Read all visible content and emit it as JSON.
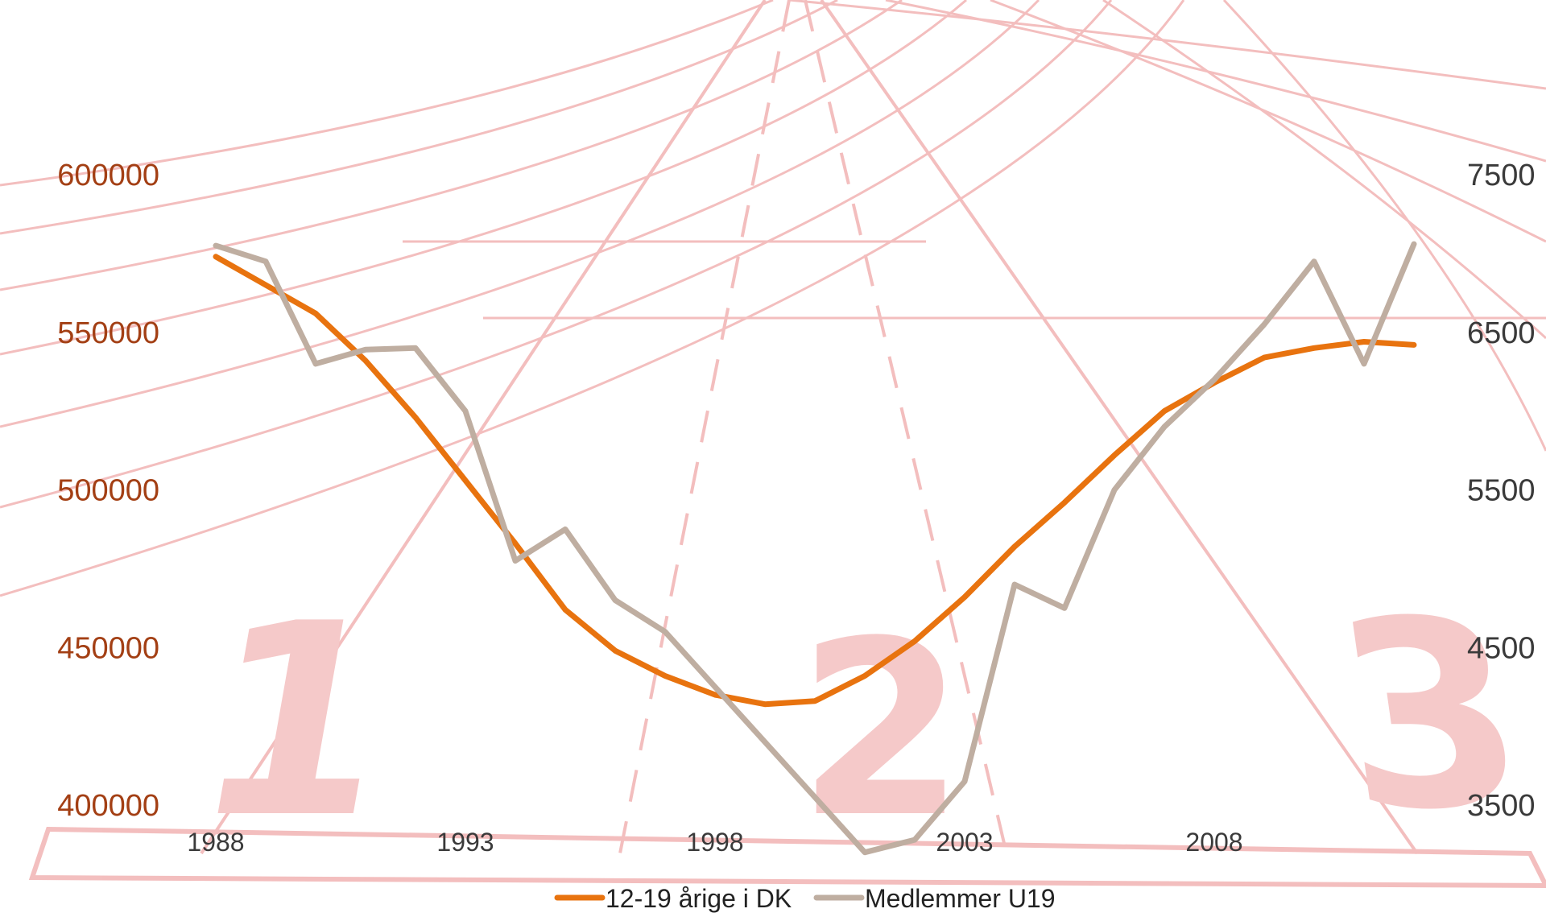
{
  "chart_data": {
    "type": "line",
    "title": "",
    "xlabel": "",
    "ylabel": "",
    "x": [
      1988,
      1989,
      1990,
      1991,
      1992,
      1993,
      1994,
      1995,
      1996,
      1997,
      1998,
      1999,
      2000,
      2001,
      2002,
      2003,
      2004,
      2005,
      2006,
      2007,
      2008,
      2009,
      2010,
      2011,
      2012
    ],
    "x_ticks": [
      "1988",
      "1993",
      "1998",
      "2003",
      "2008"
    ],
    "y_left": {
      "ylim": [
        400000,
        600000
      ],
      "ticks": [
        "400000",
        "450000",
        "500000",
        "550000",
        "600000"
      ],
      "color": "#a33f14"
    },
    "y_right": {
      "ylim": [
        3500,
        7500
      ],
      "ticks": [
        "3500",
        "4500",
        "5500",
        "6500",
        "7500"
      ],
      "color": "#3a3a3a"
    },
    "series": [
      {
        "name": "12-19 årige i DK",
        "axis": "left",
        "color": "#e8730f",
        "values": [
          574000,
          565000,
          556000,
          541000,
          523000,
          503000,
          483000,
          462000,
          449000,
          441000,
          435000,
          432000,
          433000,
          441000,
          452000,
          466000,
          482000,
          496000,
          511000,
          525000,
          534000,
          542000,
          545000,
          547000,
          546000
        ]
      },
      {
        "name": "Medlemmer U19",
        "axis": "right",
        "color": "#bfaea1",
        "values": [
          7050,
          6950,
          6300,
          6390,
          6400,
          6000,
          5050,
          5250,
          4800,
          4600,
          4250,
          3900,
          3550,
          3200,
          3280,
          3650,
          4900,
          4750,
          5500,
          5900,
          6200,
          6550,
          6950,
          6300,
          7060
        ]
      }
    ],
    "legend_position": "bottom-center",
    "grid": false
  }
}
